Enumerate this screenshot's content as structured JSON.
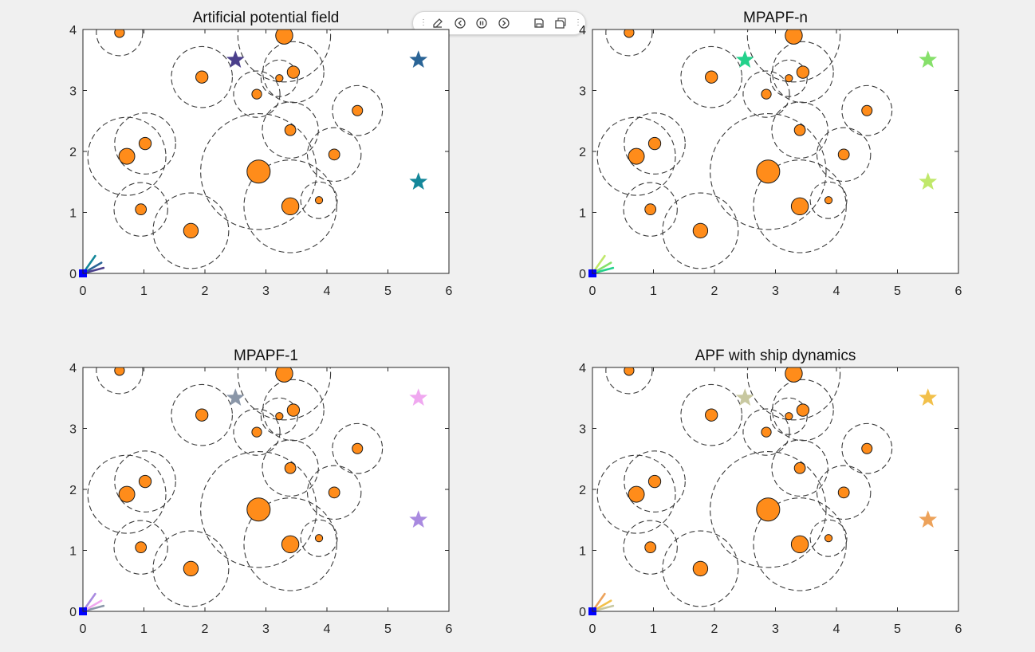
{
  "figure": {
    "toolbar": {
      "buttons": [
        {
          "name": "edit-plot-icon"
        },
        {
          "name": "back-icon"
        },
        {
          "name": "pause-icon"
        },
        {
          "name": "forward-icon"
        },
        {
          "name": "save-icon"
        },
        {
          "name": "copy-icon"
        }
      ]
    }
  },
  "chart_data": [
    {
      "type": "scatter",
      "title": "Artificial potential field",
      "xlim": [
        0,
        6
      ],
      "ylim": [
        0,
        4
      ],
      "xticks": [
        0,
        1,
        2,
        3,
        4,
        5,
        6
      ],
      "yticks": [
        0,
        1,
        2,
        3,
        4
      ],
      "goal_colors": [
        "#4b3f8c",
        "#2a6496",
        "#14879a"
      ],
      "fan_colors": [
        "#4b3f8c",
        "#2a6496",
        "#14879a"
      ]
    },
    {
      "type": "scatter",
      "title": "MPAPF-n",
      "xlim": [
        0,
        6
      ],
      "ylim": [
        0,
        4
      ],
      "xticks": [
        0,
        1,
        2,
        3,
        4,
        5,
        6
      ],
      "yticks": [
        0,
        1,
        2,
        3,
        4
      ],
      "goal_colors": [
        "#23d18b",
        "#86e06a",
        "#c0e86a"
      ],
      "fan_colors": [
        "#23d18b",
        "#86e06a",
        "#c0e86a"
      ]
    },
    {
      "type": "scatter",
      "title": "MPAPF-1",
      "xlim": [
        0,
        6
      ],
      "ylim": [
        0,
        4
      ],
      "xticks": [
        0,
        1,
        2,
        3,
        4,
        5,
        6
      ],
      "yticks": [
        0,
        1,
        2,
        3,
        4
      ],
      "goal_colors": [
        "#8a96a8",
        "#f0a8f0",
        "#a98ae0"
      ],
      "fan_colors": [
        "#8a96a8",
        "#f0a8f0",
        "#a98ae0"
      ]
    },
    {
      "type": "scatter",
      "title": "APF with ship dynamics",
      "xlim": [
        0,
        6
      ],
      "ylim": [
        0,
        4
      ],
      "xticks": [
        0,
        1,
        2,
        3,
        4,
        5,
        6
      ],
      "yticks": [
        0,
        1,
        2,
        3,
        4
      ],
      "goal_colors": [
        "#c8c8a0",
        "#f2c04a",
        "#eda25a"
      ],
      "fan_colors": [
        "#c8c8a0",
        "#f2c04a",
        "#eda25a"
      ]
    }
  ],
  "scene": {
    "start": [
      0,
      0
    ],
    "start_color": "#0000ff",
    "goals": [
      [
        2.5,
        3.5
      ],
      [
        5.5,
        3.5
      ],
      [
        5.5,
        1.5
      ]
    ],
    "fan_angles_deg": [
      15,
      30,
      55
    ],
    "fan_length": 0.35,
    "obstacles": [
      {
        "x": 0.6,
        "y": 3.95,
        "r": 0.08,
        "R": 0.38
      },
      {
        "x": 3.3,
        "y": 3.9,
        "r": 0.14,
        "R": 0.76
      },
      {
        "x": 1.95,
        "y": 3.22,
        "r": 0.1,
        "R": 0.5
      },
      {
        "x": 3.45,
        "y": 3.3,
        "r": 0.1,
        "R": 0.5
      },
      {
        "x": 3.22,
        "y": 3.2,
        "r": 0.06,
        "R": 0.3
      },
      {
        "x": 2.85,
        "y": 2.94,
        "r": 0.08,
        "R": 0.38
      },
      {
        "x": 4.5,
        "y": 2.67,
        "r": 0.085,
        "R": 0.41
      },
      {
        "x": 3.4,
        "y": 2.35,
        "r": 0.09,
        "R": 0.46
      },
      {
        "x": 1.02,
        "y": 2.13,
        "r": 0.1,
        "R": 0.5
      },
      {
        "x": 0.72,
        "y": 1.92,
        "r": 0.13,
        "R": 0.64
      },
      {
        "x": 4.12,
        "y": 1.95,
        "r": 0.09,
        "R": 0.44
      },
      {
        "x": 2.88,
        "y": 1.67,
        "r": 0.19,
        "R": 0.95
      },
      {
        "x": 3.4,
        "y": 1.1,
        "r": 0.14,
        "R": 0.76
      },
      {
        "x": 3.87,
        "y": 1.2,
        "r": 0.06,
        "R": 0.3
      },
      {
        "x": 0.95,
        "y": 1.05,
        "r": 0.09,
        "R": 0.44
      },
      {
        "x": 1.77,
        "y": 0.7,
        "r": 0.12,
        "R": 0.62
      }
    ]
  }
}
